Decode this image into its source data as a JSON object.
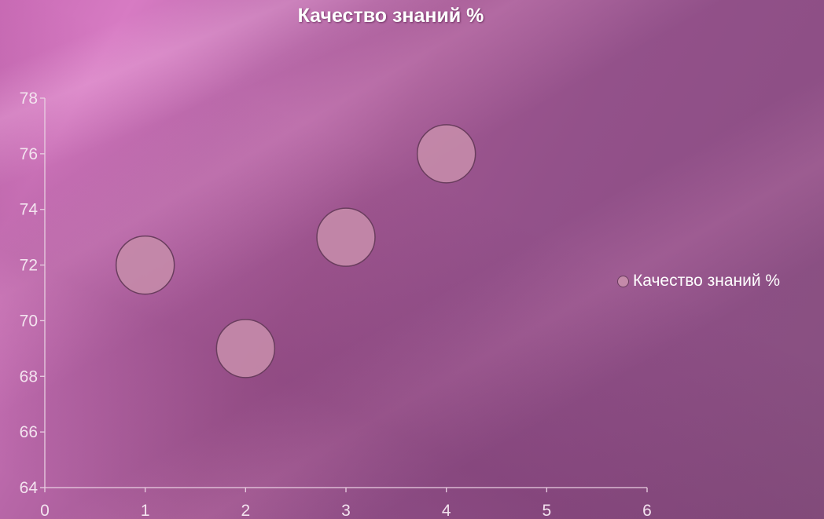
{
  "chart_data": {
    "type": "scatter",
    "title": "Качество знаний %",
    "xlim": [
      0,
      6
    ],
    "ylim": [
      64,
      78
    ],
    "x_ticks": [
      0,
      1,
      2,
      3,
      4,
      5,
      6
    ],
    "y_ticks": [
      64,
      66,
      68,
      70,
      72,
      74,
      76,
      78
    ],
    "grid": false,
    "legend_position": "right",
    "series": [
      {
        "name": "Качество знаний %",
        "color": "#c48aa9",
        "points": [
          {
            "x": 1,
            "y": 72
          },
          {
            "x": 2,
            "y": 69
          },
          {
            "x": 3,
            "y": 73
          },
          {
            "x": 4,
            "y": 76
          }
        ]
      }
    ],
    "colors": {
      "marker_fill": "#c48aa9",
      "marker_stroke": "#6a3d5e",
      "axis": "#e9cfe2",
      "text": "#ffffff"
    }
  }
}
